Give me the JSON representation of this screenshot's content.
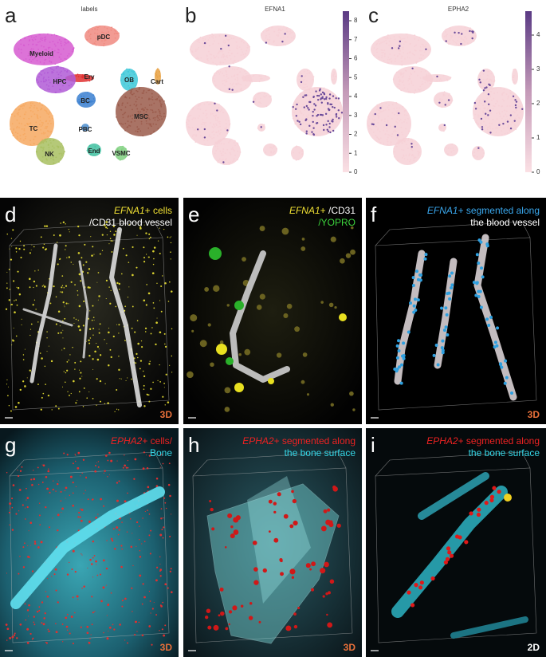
{
  "panels": {
    "a": {
      "letter": "a",
      "title": "labels",
      "clusters": [
        "Myeloid",
        "pDC",
        "Ery",
        "HPC",
        "OB",
        "Cart",
        "BC",
        "MSC",
        "TC",
        "PBC",
        "NK",
        "End",
        "VSMC"
      ]
    },
    "b": {
      "letter": "b",
      "title": "EFNA1",
      "colorbar": {
        "ticks": [
          0,
          1,
          2,
          3,
          4,
          5,
          6,
          7,
          8
        ]
      }
    },
    "c": {
      "letter": "c",
      "title": "EPHA2",
      "colorbar": {
        "ticks": [
          0,
          1,
          2,
          3,
          4
        ]
      }
    },
    "d": {
      "letter": "d",
      "caption": [
        [
          "EFNA1",
          "+ cells"
        ],
        [
          "/CD31 blood vessel"
        ]
      ],
      "badge": "3D"
    },
    "e": {
      "letter": "e",
      "caption": [
        [
          "EFNA1",
          "+ ",
          "/CD31"
        ],
        [
          "/YOPRO"
        ]
      ]
    },
    "f": {
      "letter": "f",
      "caption": [
        [
          "EFNA1",
          "+ segmented along"
        ],
        [
          "the blood vessel"
        ]
      ],
      "badge": "3D"
    },
    "g": {
      "letter": "g",
      "caption": [
        [
          "EPHA2",
          "+ cells/"
        ],
        [
          "Bone"
        ]
      ],
      "badge": "3D"
    },
    "h": {
      "letter": "h",
      "caption": [
        [
          "EPHA2",
          "+ segmented along"
        ],
        [
          "the bone surface"
        ]
      ],
      "badge": "3D"
    },
    "i": {
      "letter": "i",
      "caption": [
        [
          "EPHA2",
          "+ segmented along"
        ],
        [
          "the bone surface"
        ]
      ],
      "badge": "2D"
    }
  }
}
